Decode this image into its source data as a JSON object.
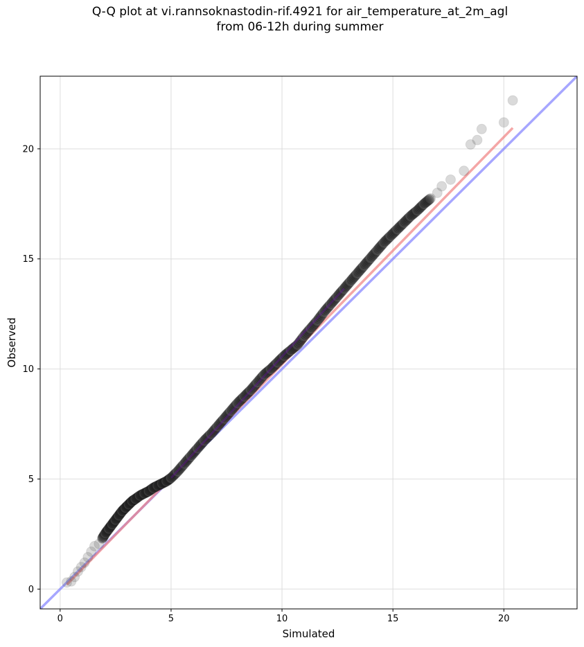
{
  "chart_data": {
    "type": "scatter",
    "title": "Q-Q plot at vi.rannsoknastodin-rif.4921 for air_temperature_at_2m_agl",
    "subtitle": "from 06-12h during summer",
    "xlabel": "Simulated",
    "ylabel": "Observed",
    "xlim": [
      -0.9,
      23.3
    ],
    "ylim": [
      -0.9,
      23.3
    ],
    "xticks": [
      0,
      5,
      10,
      15,
      20
    ],
    "yticks": [
      0,
      5,
      10,
      15,
      20
    ],
    "grid": true,
    "colors": {
      "points": "#555555",
      "fit_line": "#f08080",
      "identity_line": "#8080ff",
      "center_line": "#6a0dad"
    },
    "series": [
      {
        "type": "scatter",
        "x": [
          0.3,
          0.5,
          0.65,
          0.8,
          0.95,
          1.1,
          1.25,
          1.4,
          1.55,
          1.75,
          1.9,
          2.05,
          2.2,
          2.35,
          2.5,
          2.65,
          2.8,
          2.95,
          3.1,
          3.25,
          3.4,
          3.6,
          3.8,
          4.0,
          4.2,
          4.4,
          4.6,
          4.8,
          5.0,
          5.3,
          5.6,
          5.9,
          6.2,
          6.5,
          6.8,
          7.1,
          7.4,
          7.7,
          8.0,
          8.3,
          8.6,
          8.9,
          9.2,
          9.5,
          9.8,
          10.1,
          10.4,
          10.7,
          11.0,
          11.3,
          11.6,
          11.9,
          12.2,
          12.5,
          12.8,
          13.1,
          13.4,
          13.7,
          14.0,
          14.3,
          14.6,
          14.9,
          15.2,
          15.5,
          15.8,
          16.1,
          16.4,
          16.7,
          17.0,
          17.2,
          17.6,
          18.2,
          18.5,
          18.8,
          19.0,
          20.0,
          20.4
        ],
        "y": [
          0.3,
          0.35,
          0.55,
          0.8,
          1.0,
          1.2,
          1.45,
          1.7,
          1.95,
          2.05,
          2.3,
          2.55,
          2.75,
          2.95,
          3.15,
          3.35,
          3.55,
          3.7,
          3.85,
          4.0,
          4.1,
          4.25,
          4.35,
          4.45,
          4.6,
          4.7,
          4.8,
          4.9,
          5.05,
          5.35,
          5.7,
          6.05,
          6.4,
          6.75,
          7.05,
          7.4,
          7.75,
          8.1,
          8.45,
          8.75,
          9.05,
          9.4,
          9.75,
          10.0,
          10.3,
          10.6,
          10.85,
          11.1,
          11.5,
          11.85,
          12.2,
          12.6,
          12.95,
          13.3,
          13.65,
          14.0,
          14.35,
          14.7,
          15.05,
          15.4,
          15.75,
          16.05,
          16.35,
          16.65,
          16.95,
          17.2,
          17.5,
          17.75,
          18.0,
          18.3,
          18.6,
          19.0,
          20.2,
          20.4,
          20.9,
          21.2,
          22.2
        ]
      },
      {
        "type": "line",
        "x": [
          0.3,
          20.4
        ],
        "y": [
          0.2,
          20.95
        ]
      },
      {
        "type": "line",
        "x": [
          -0.9,
          23.3
        ],
        "y": [
          -0.9,
          23.3
        ]
      }
    ]
  }
}
